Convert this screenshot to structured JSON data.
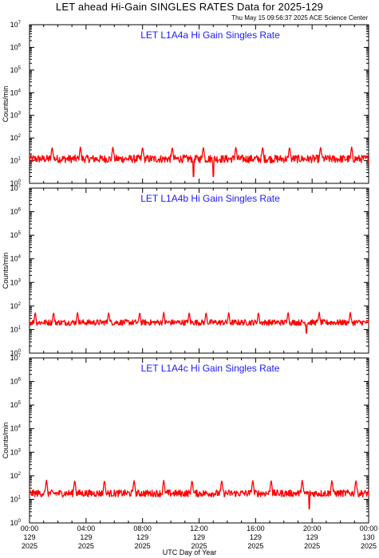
{
  "header": {
    "title": "LET ahead Hi-Gain SINGLES RATES Data for 2025-129",
    "timestamp": "Thu May 15 09:56:37 2025 ACE Science Center"
  },
  "colors": {
    "series": "#ff0000",
    "panel_title": "#1a1aff",
    "axis": "#000000"
  },
  "chart_data": [
    {
      "type": "line",
      "title": "LET L1A4a Hi Gain Singles Rate",
      "ylabel": "Counts/min",
      "yscale": "log",
      "ylim": [
        1,
        10000000
      ],
      "ytick_exponents": [
        0,
        1,
        2,
        3,
        4,
        5,
        6,
        7
      ],
      "xlim": [
        0,
        24
      ],
      "baseline": 12,
      "noise": 0.35,
      "spike_peak": 40,
      "spike_hours": [
        1.6,
        3.6,
        5.9,
        8.0,
        10.1,
        12.3,
        14.6,
        16.5,
        18.4,
        20.6,
        22.8
      ],
      "dip_hours": [
        11.6,
        13.0
      ],
      "dip_min": 2
    },
    {
      "type": "line",
      "title": "LET L1A4b Hi Gain Singles Rate",
      "ylabel": "Counts/min",
      "yscale": "log",
      "ylim": [
        1,
        10000000
      ],
      "ytick_exponents": [
        0,
        1,
        2,
        3,
        4,
        5,
        6,
        7
      ],
      "xlim": [
        0,
        24
      ],
      "baseline": 20,
      "noise": 0.25,
      "spike_peak": 55,
      "spike_hours": [
        0.4,
        1.7,
        3.4,
        5.6,
        7.8,
        9.5,
        11.3,
        12.5,
        14.1,
        16.2,
        18.3,
        20.5,
        22.7
      ],
      "dip_hours": [
        19.6
      ],
      "dip_min": 7
    },
    {
      "type": "line",
      "title": "LET L1A4c Hi Gain Singles Rate",
      "ylabel": "Counts/min",
      "yscale": "log",
      "ylim": [
        1,
        10000000
      ],
      "ytick_exponents": [
        0,
        1,
        2,
        3,
        4,
        5,
        6,
        7
      ],
      "xlim": [
        0,
        24
      ],
      "baseline": 18,
      "noise": 0.3,
      "spike_peak": 65,
      "spike_hours": [
        1.2,
        3.2,
        5.3,
        7.4,
        9.5,
        11.5,
        13.6,
        15.8,
        17.1,
        19.3,
        21.4,
        23.1
      ],
      "dip_hours": [
        19.8
      ],
      "dip_min": 4
    }
  ],
  "x_axis": {
    "label": "UTC Day of Year",
    "ticks": [
      {
        "hour": 0,
        "time": "00:00",
        "doy": "129",
        "year": "2025"
      },
      {
        "hour": 4,
        "time": "04:00",
        "doy": "129",
        "year": "2025"
      },
      {
        "hour": 8,
        "time": "08:00",
        "doy": "129",
        "year": "2025"
      },
      {
        "hour": 12,
        "time": "12:00",
        "doy": "129",
        "year": "2025"
      },
      {
        "hour": 16,
        "time": "16:00",
        "doy": "129",
        "year": "2025"
      },
      {
        "hour": 20,
        "time": "20:00",
        "doy": "129",
        "year": "2025"
      },
      {
        "hour": 24,
        "time": "00:00",
        "doy": "130",
        "year": "2025"
      }
    ]
  }
}
